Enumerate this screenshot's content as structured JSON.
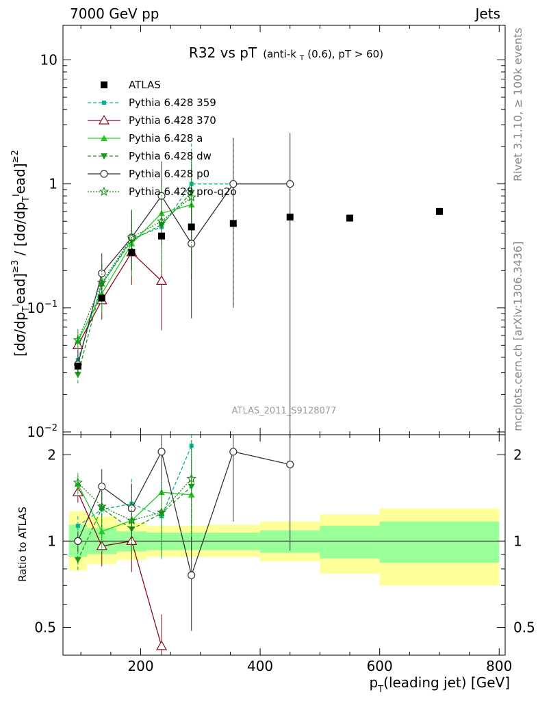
{
  "corner_left": "7000 GeV pp",
  "corner_right": "Jets",
  "side_rivet": "Rivet 3.1.10, ≥ 100k events",
  "side_mcplots": "mcplots.cern.ch [arXiv:1306.3436]",
  "watermark": "ATLAS_2011_S9128077",
  "title_main": "R32 vs pT",
  "title_cut_a": "(anti-k",
  "title_cut_sub": "T",
  "title_cut_b": "(0.6), pT > 60)",
  "ylabel_top": "[dσ/dp_T^lead]^{≥3} / [dσ/dp_T^lead]^{≥2}",
  "ylabel_bottom": "Ratio to ATLAS",
  "xlabel": "p_T(leading jet) [GeV]",
  "chart_data": [
    {
      "type": "scatter",
      "panel": "main",
      "title": "R32 vs pT (anti-kT(0.6), pT > 60)",
      "xlabel": "pT(leading jet) [GeV]",
      "ylabel": "[dσ/dpTlead]≥3 / [dσ/dpTlead]≥2",
      "xlim": [
        70,
        810
      ],
      "ylim": [
        0.0095,
        19
      ],
      "yscale": "log",
      "x_ticks": [
        "200",
        "400",
        "600",
        "800"
      ],
      "y_ticks": [
        "10^{-2}",
        "10^{-1}",
        "1",
        "10"
      ],
      "legend_position": "upper-left",
      "series": [
        {
          "name": "ATLAS",
          "color": "#000000",
          "marker": "square-filled",
          "linestyle": "none",
          "x": [
            95,
            135,
            185,
            235,
            285,
            355,
            450,
            550,
            700
          ],
          "y": [
            0.034,
            0.12,
            0.28,
            0.38,
            0.45,
            0.48,
            0.54,
            0.53,
            0.6
          ]
        },
        {
          "name": "Pythia 6.428 359",
          "color": "#00b392",
          "marker": "square-small",
          "linestyle": "dashed",
          "x": [
            95,
            135,
            185,
            235,
            285,
            355
          ],
          "y": [
            0.038,
            0.155,
            0.36,
            0.45,
            1.0,
            1.0
          ]
        },
        {
          "name": "Pythia 6.428 370",
          "color": "#8b0a1e",
          "marker": "triangle-open",
          "linestyle": "solid",
          "x": [
            95,
            135,
            185,
            235
          ],
          "y": [
            0.05,
            0.115,
            0.28,
            0.165
          ]
        },
        {
          "name": "Pythia 6.428 a",
          "color": "#22cc22",
          "marker": "triangle-filled",
          "linestyle": "solid",
          "x": [
            95,
            135,
            185,
            235,
            285
          ],
          "y": [
            0.054,
            0.13,
            0.33,
            0.58,
            0.68
          ]
        },
        {
          "name": "Pythia 6.428 dw",
          "color": "#1a9a1a",
          "marker": "triangle-down-filled",
          "linestyle": "dashed",
          "x": [
            95,
            135,
            185,
            235,
            285
          ],
          "y": [
            0.029,
            0.155,
            0.35,
            0.47,
            0.85
          ]
        },
        {
          "name": "Pythia 6.428 p0",
          "color": "#333333",
          "marker": "circle-open",
          "linestyle": "solid",
          "x": [
            95,
            135,
            185,
            235,
            285,
            355,
            450
          ],
          "y": [
            0.035,
            0.19,
            0.37,
            0.8,
            0.33,
            1.0,
            1.0
          ]
        },
        {
          "name": "Pythia 6.428 pro-q2o",
          "color": "#1a8a1a",
          "marker": "star",
          "linestyle": "dotted",
          "x": [
            95,
            135,
            185,
            235,
            285
          ],
          "y": [
            0.055,
            0.16,
            0.37,
            0.5,
            0.78
          ]
        }
      ]
    },
    {
      "type": "line",
      "panel": "ratio",
      "ylabel": "Ratio to ATLAS",
      "xlabel": "pT(leading jet) [GeV]",
      "xlim": [
        70,
        810
      ],
      "ylim": [
        0.4,
        2.35
      ],
      "yscale": "log",
      "y_ticks": [
        "0.5",
        "1",
        "2"
      ],
      "bands": {
        "bins": [
          80,
          110,
          160,
          210,
          260,
          310,
          400,
          500,
          600,
          800
        ],
        "yellow_lo": [
          0.79,
          0.83,
          0.86,
          0.88,
          0.88,
          0.88,
          0.85,
          0.77,
          0.7
        ],
        "yellow_hi": [
          1.27,
          1.22,
          1.16,
          1.13,
          1.13,
          1.14,
          1.17,
          1.24,
          1.3
        ],
        "green_lo": [
          0.88,
          0.9,
          0.92,
          0.93,
          0.93,
          0.93,
          0.91,
          0.87,
          0.84
        ],
        "green_hi": [
          1.14,
          1.11,
          1.08,
          1.07,
          1.07,
          1.07,
          1.09,
          1.13,
          1.17
        ]
      },
      "series": [
        {
          "name": "Pythia 6.428 359",
          "color": "#00b392",
          "marker": "square-small",
          "linestyle": "dashed",
          "x": [
            95,
            135,
            185,
            235,
            285
          ],
          "y": [
            1.13,
            1.29,
            1.35,
            1.22,
            2.15
          ]
        },
        {
          "name": "Pythia 6.428 370",
          "color": "#8b0a1e",
          "marker": "triangle-open",
          "linestyle": "solid",
          "x": [
            95,
            135,
            185,
            235
          ],
          "y": [
            1.48,
            0.96,
            1.0,
            0.43
          ]
        },
        {
          "name": "Pythia 6.428 a",
          "color": "#22cc22",
          "marker": "triangle-filled",
          "linestyle": "solid",
          "x": [
            95,
            135,
            185,
            235,
            285
          ],
          "y": [
            1.58,
            1.08,
            1.18,
            1.48,
            1.45
          ]
        },
        {
          "name": "Pythia 6.428 dw",
          "color": "#1a9a1a",
          "marker": "triangle-down-filled",
          "linestyle": "dashed",
          "x": [
            95,
            135,
            185,
            235,
            285
          ],
          "y": [
            0.86,
            1.3,
            1.1,
            1.25,
            1.55
          ]
        },
        {
          "name": "Pythia 6.428 p0",
          "color": "#333333",
          "marker": "circle-open",
          "linestyle": "solid",
          "x": [
            95,
            135,
            185,
            235,
            285,
            355,
            450
          ],
          "y": [
            1.0,
            1.55,
            1.3,
            2.05,
            0.76,
            2.05,
            1.85
          ]
        },
        {
          "name": "Pythia 6.428 pro-q2o",
          "color": "#1a8a1a",
          "marker": "star",
          "linestyle": "dotted",
          "x": [
            95,
            135,
            185,
            235,
            285
          ],
          "y": [
            1.6,
            1.32,
            1.18,
            1.26,
            1.65
          ]
        }
      ]
    }
  ]
}
